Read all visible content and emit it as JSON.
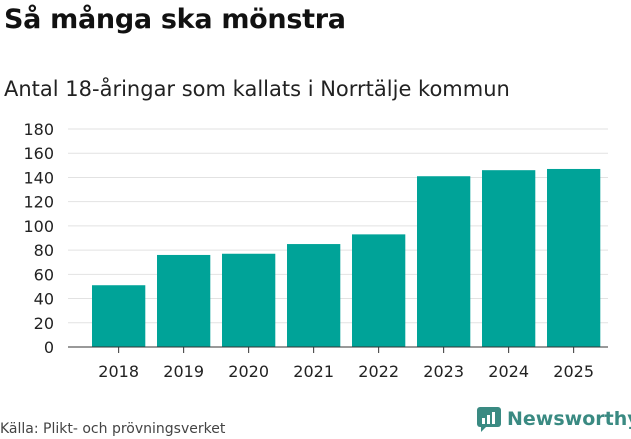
{
  "title": "Så många ska mönstra",
  "subtitle": "Antal 18-åringar som kallats i Norrtälje kommun",
  "source": "Källa: Plikt- och prövningsverket",
  "brand": {
    "name": "Newsworthy",
    "icon": "newsworthy-logo-icon",
    "color": "#3a8a82"
  },
  "colors": {
    "bar": "#00a398",
    "grid": "#e2e2e2",
    "axis": "#333333"
  },
  "chart_data": {
    "type": "bar",
    "title": "Så många ska mönstra",
    "subtitle": "Antal 18-åringar som kallats i Norrtälje kommun",
    "categories": [
      "2018",
      "2019",
      "2020",
      "2021",
      "2022",
      "2023",
      "2024",
      "2025"
    ],
    "values": [
      51,
      76,
      77,
      85,
      93,
      141,
      146,
      147
    ],
    "xlabel": "",
    "ylabel": "",
    "ylim": [
      0,
      180
    ],
    "yticks": [
      "0",
      "20",
      "40",
      "60",
      "80",
      "100",
      "120",
      "140",
      "160",
      "180"
    ],
    "grid": true
  }
}
